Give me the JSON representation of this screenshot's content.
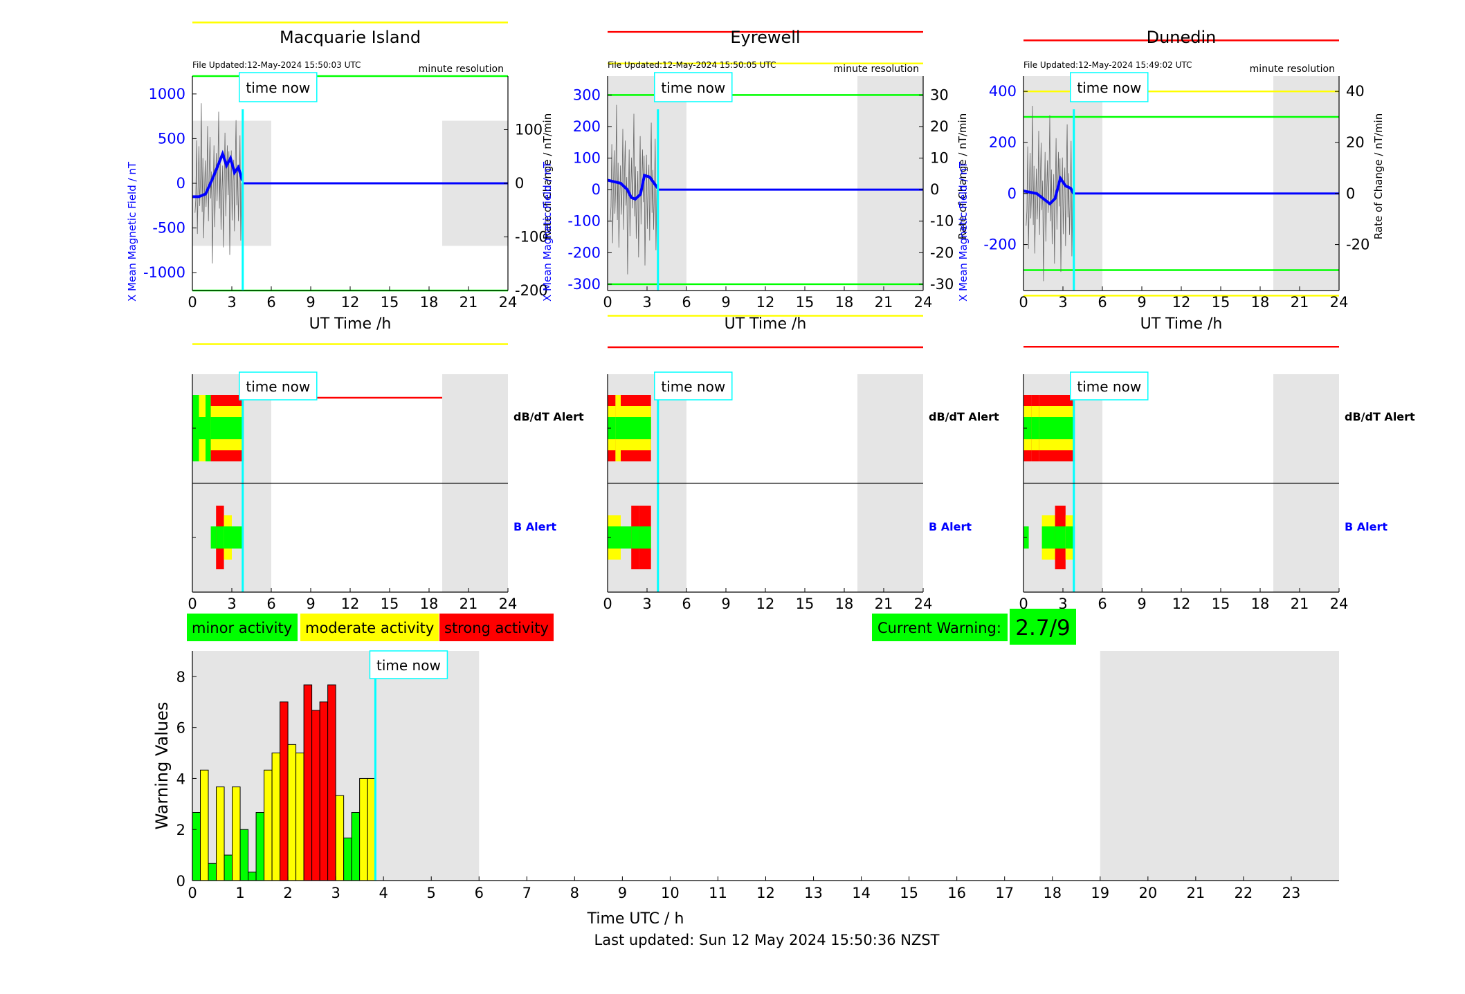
{
  "footer": "Last updated: Sun 12 May 2024 15:50:36 NZST",
  "time_now_label": "time now",
  "time_now_h": 3.83,
  "legend": [
    "minor activity",
    "moderate activity",
    "strong activity"
  ],
  "current_warning": {
    "label": "Current Warning:",
    "value": "2.7/9"
  },
  "colors": {
    "green": "#00ff00",
    "yellow": "#ffff00",
    "red": "#ff0000",
    "cyan": "#00ffff",
    "blue": "#0000ff",
    "night": "#e5e5e5"
  },
  "chart_data": [
    {
      "type": "line",
      "station": "Macquarie Island",
      "file_updated": "File Updated:12-May-2024 15:50:03 UTC",
      "resolution": "minute resolution",
      "xlabel": "UT Time /h",
      "ylabel_left": "X Mean Magnetic Field / nT",
      "ylabel_right": "Rate of Change / nT/min",
      "xlim": [
        0,
        24
      ],
      "xticks": [
        0,
        3,
        6,
        9,
        12,
        15,
        18,
        21,
        24
      ],
      "ylim_left": [
        -1200,
        1200
      ],
      "yticks_left": [
        -1000,
        -500,
        0,
        500,
        1000
      ],
      "ylim_right": [
        -200,
        200
      ],
      "yticks_right": [
        -200,
        -100,
        0,
        100
      ],
      "night_bands": [
        [
          0,
          6
        ],
        [
          19,
          24
        ]
      ],
      "night_band_y": [
        -700,
        700
      ],
      "thresholds": [
        {
          "y": 400,
          "color": "red"
        },
        {
          "y": 300,
          "color": "yellow"
        },
        {
          "y": 200,
          "color": "green"
        },
        {
          "y": -200,
          "color": "green"
        },
        {
          "y": -300,
          "color": "yellow"
        },
        {
          "y": -400,
          "color": "red"
        }
      ],
      "x_mean_field": [
        [
          0,
          -150
        ],
        [
          0.5,
          -150
        ],
        [
          1,
          -120
        ],
        [
          1.5,
          40
        ],
        [
          2,
          220
        ],
        [
          2.3,
          330
        ],
        [
          2.6,
          200
        ],
        [
          2.9,
          280
        ],
        [
          3.2,
          120
        ],
        [
          3.5,
          180
        ],
        [
          3.8,
          30
        ]
      ]
    },
    {
      "type": "line",
      "station": "Eyrewell",
      "file_updated": "File Updated:12-May-2024 15:50:05 UTC",
      "resolution": "minute resolution",
      "xlabel": "UT Time /h",
      "ylabel_left": "X Mean Magnetic Field / nT",
      "ylabel_right": "Rate of Change / nT/min",
      "xlim": [
        0,
        24
      ],
      "xticks": [
        0,
        3,
        6,
        9,
        12,
        15,
        18,
        21,
        24
      ],
      "ylim_left": [
        -320,
        360
      ],
      "yticks_left": [
        -300,
        -200,
        -100,
        0,
        100,
        200,
        300
      ],
      "ylim_right": [
        -32,
        36
      ],
      "yticks_right": [
        -30,
        -20,
        -10,
        0,
        10,
        20,
        30
      ],
      "night_bands": [
        [
          0,
          6
        ],
        [
          19,
          24
        ]
      ],
      "night_band_y": [
        -320,
        360
      ],
      "thresholds": [
        {
          "y": 50,
          "color": "red"
        },
        {
          "y": 40,
          "color": "yellow"
        },
        {
          "y": 30,
          "color": "green"
        },
        {
          "y": -30,
          "color": "green"
        },
        {
          "y": -40,
          "color": "yellow"
        },
        {
          "y": -50,
          "color": "red"
        }
      ],
      "x_mean_field": [
        [
          0,
          30
        ],
        [
          1,
          20
        ],
        [
          1.5,
          0
        ],
        [
          1.8,
          -25
        ],
        [
          2.1,
          -30
        ],
        [
          2.5,
          -15
        ],
        [
          2.8,
          45
        ],
        [
          3.2,
          40
        ],
        [
          3.8,
          5
        ]
      ]
    },
    {
      "type": "line",
      "station": "Dunedin",
      "file_updated": "File Updated:12-May-2024 15:49:02 UTC",
      "resolution": "minute resolution",
      "xlabel": "UT Time /h",
      "ylabel_left": "X Mean Magnetic Field / nT",
      "ylabel_right": "Rate of Change / nT/min",
      "xlim": [
        0,
        24
      ],
      "xticks": [
        0,
        3,
        6,
        9,
        12,
        15,
        18,
        21,
        24
      ],
      "ylim_left": [
        -380,
        460
      ],
      "yticks_left": [
        -200,
        0,
        200,
        400
      ],
      "ylim_right": [
        -38,
        46
      ],
      "yticks_right": [
        -20,
        0,
        20,
        40
      ],
      "night_bands": [
        [
          0,
          6
        ],
        [
          19,
          24
        ]
      ],
      "night_band_y": [
        -380,
        460
      ],
      "thresholds": [
        {
          "y": 60,
          "color": "red"
        },
        {
          "y": 40,
          "color": "yellow"
        },
        {
          "y": 30,
          "color": "green"
        },
        {
          "y": -30,
          "color": "green"
        },
        {
          "y": -40,
          "color": "yellow"
        },
        {
          "y": -60,
          "color": "red"
        }
      ],
      "x_mean_field": [
        [
          0,
          10
        ],
        [
          1,
          0
        ],
        [
          1.5,
          -20
        ],
        [
          2,
          -40
        ],
        [
          2.4,
          -20
        ],
        [
          2.8,
          60
        ],
        [
          3.2,
          30
        ],
        [
          3.6,
          20
        ],
        [
          3.8,
          0
        ]
      ]
    },
    {
      "type": "alert_strip",
      "station": "Macquarie Island",
      "labels": [
        "dB/dT Alert",
        "B Alert"
      ],
      "xlim": [
        0,
        24
      ],
      "xticks": [
        0,
        3,
        6,
        9,
        12,
        15,
        18,
        21,
        24
      ],
      "night_bands": [
        [
          0,
          6
        ],
        [
          19,
          24
        ]
      ],
      "dbdt": [
        [
          0.0,
          0.5,
          "green"
        ],
        [
          0.5,
          1.0,
          "yellow"
        ],
        [
          1.0,
          1.4,
          "green"
        ],
        [
          1.4,
          3.9,
          "red"
        ]
      ],
      "b": [
        [
          1.4,
          1.8,
          "green"
        ],
        [
          1.8,
          2.4,
          "red"
        ],
        [
          2.4,
          3.0,
          "yellow"
        ],
        [
          3.0,
          3.8,
          "green"
        ]
      ]
    },
    {
      "type": "alert_strip",
      "station": "Eyrewell",
      "labels": [
        "dB/dT Alert",
        "B Alert"
      ],
      "xlim": [
        0,
        24
      ],
      "xticks": [
        0,
        3,
        6,
        9,
        12,
        15,
        18,
        21,
        24
      ],
      "night_bands": [
        [
          0,
          6
        ],
        [
          19,
          24
        ]
      ],
      "dbdt": [
        [
          0.0,
          0.6,
          "red"
        ],
        [
          0.6,
          1.0,
          "yellow"
        ],
        [
          1.0,
          3.3,
          "red"
        ]
      ],
      "b": [
        [
          0.0,
          1.0,
          "yellow"
        ],
        [
          1.0,
          1.8,
          "green"
        ],
        [
          1.8,
          2.4,
          "red"
        ],
        [
          2.4,
          3.3,
          "red"
        ]
      ]
    },
    {
      "type": "alert_strip",
      "station": "Dunedin",
      "labels": [
        "dB/dT Alert",
        "B Alert"
      ],
      "xlim": [
        0,
        24
      ],
      "xticks": [
        0,
        3,
        6,
        9,
        12,
        15,
        18,
        21,
        24
      ],
      "night_bands": [
        [
          0,
          6
        ],
        [
          19,
          24
        ]
      ],
      "dbdt": [
        [
          0.0,
          0.6,
          "red"
        ],
        [
          0.6,
          1.2,
          "red"
        ],
        [
          1.2,
          3.9,
          "red"
        ]
      ],
      "b": [
        [
          0.0,
          0.4,
          "green"
        ],
        [
          1.4,
          2.4,
          "yellow"
        ],
        [
          2.4,
          3.2,
          "red"
        ],
        [
          3.2,
          3.9,
          "yellow"
        ]
      ]
    },
    {
      "type": "bar",
      "title": "",
      "xlabel": "Time UTC / h",
      "ylabel": "Warning Values",
      "xlim": [
        0,
        24
      ],
      "ylim": [
        0,
        9
      ],
      "xticks": [
        0,
        1,
        2,
        3,
        4,
        5,
        6,
        7,
        8,
        9,
        10,
        11,
        12,
        13,
        14,
        15,
        16,
        17,
        18,
        19,
        20,
        21,
        22,
        23
      ],
      "yticks": [
        0,
        2,
        4,
        6,
        8
      ],
      "night_bands": [
        [
          0,
          6
        ],
        [
          19,
          24
        ]
      ],
      "bar_width_h": 0.1667,
      "bars": [
        {
          "x": 0.0,
          "value": 2.67,
          "color": "green"
        },
        {
          "x": 0.1667,
          "value": 4.33,
          "color": "yellow"
        },
        {
          "x": 0.3333,
          "value": 0.67,
          "color": "green"
        },
        {
          "x": 0.5,
          "value": 3.67,
          "color": "yellow"
        },
        {
          "x": 0.6667,
          "value": 1.0,
          "color": "green"
        },
        {
          "x": 0.8333,
          "value": 3.67,
          "color": "yellow"
        },
        {
          "x": 1.0,
          "value": 2.0,
          "color": "green"
        },
        {
          "x": 1.1667,
          "value": 0.33,
          "color": "green"
        },
        {
          "x": 1.3333,
          "value": 2.67,
          "color": "green"
        },
        {
          "x": 1.5,
          "value": 4.33,
          "color": "yellow"
        },
        {
          "x": 1.6667,
          "value": 5.0,
          "color": "yellow"
        },
        {
          "x": 1.8333,
          "value": 7.0,
          "color": "red"
        },
        {
          "x": 2.0,
          "value": 5.33,
          "color": "yellow"
        },
        {
          "x": 2.1667,
          "value": 5.0,
          "color": "yellow"
        },
        {
          "x": 2.3333,
          "value": 7.67,
          "color": "red"
        },
        {
          "x": 2.5,
          "value": 6.67,
          "color": "red"
        },
        {
          "x": 2.6667,
          "value": 7.0,
          "color": "red"
        },
        {
          "x": 2.8333,
          "value": 7.67,
          "color": "red"
        },
        {
          "x": 3.0,
          "value": 3.33,
          "color": "yellow"
        },
        {
          "x": 3.1667,
          "value": 1.67,
          "color": "green"
        },
        {
          "x": 3.3333,
          "value": 2.67,
          "color": "green"
        },
        {
          "x": 3.5,
          "value": 4.0,
          "color": "yellow"
        },
        {
          "x": 3.6667,
          "value": 4.0,
          "color": "yellow"
        }
      ]
    }
  ]
}
